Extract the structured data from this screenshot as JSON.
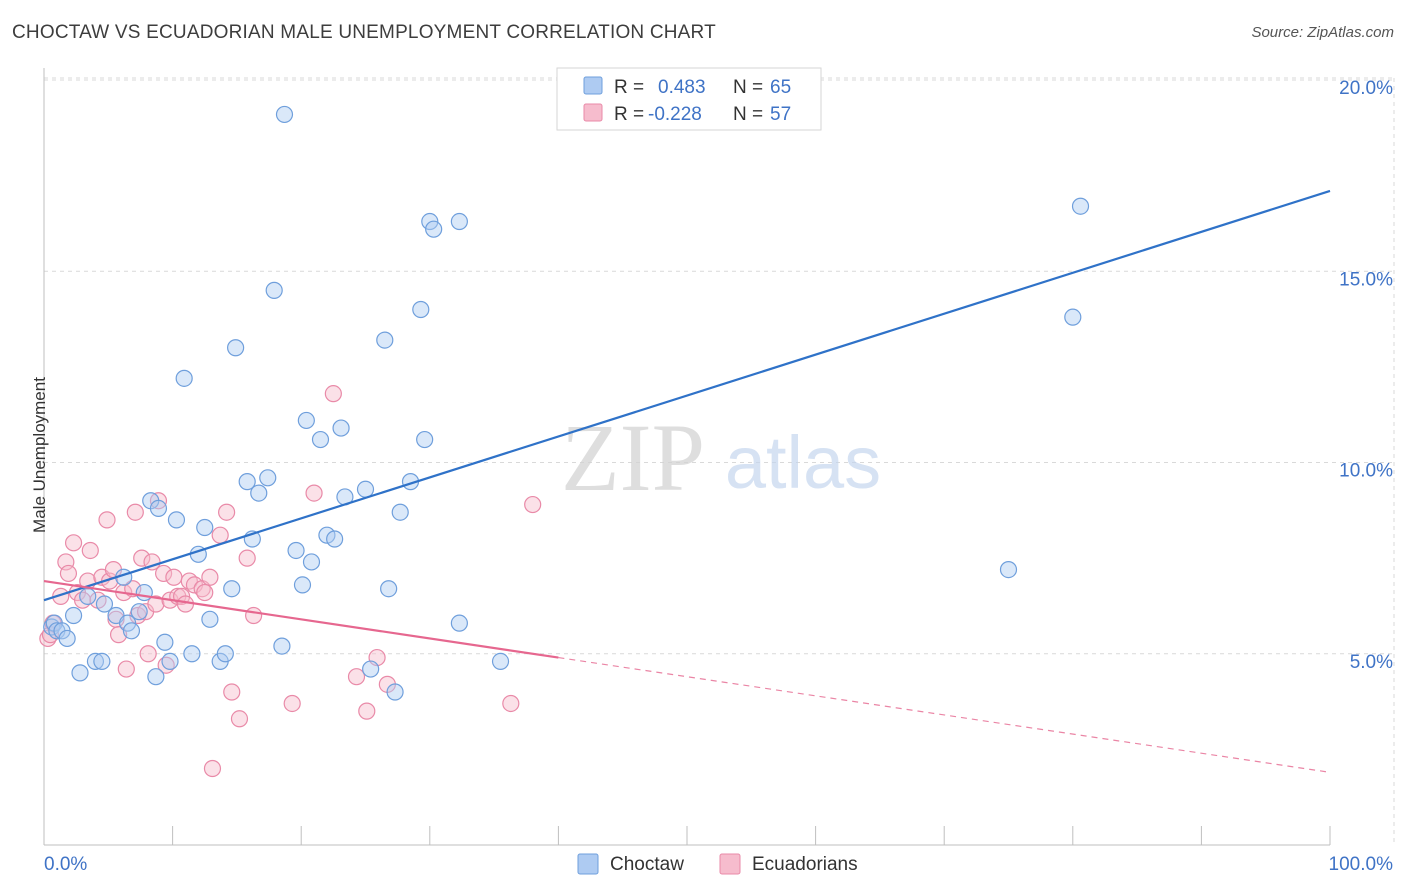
{
  "title": "CHOCTAW VS ECUADORIAN MALE UNEMPLOYMENT CORRELATION CHART",
  "source": "Source: ZipAtlas.com",
  "watermark": {
    "zip": "ZIP",
    "atlas": "atlas"
  },
  "colors": {
    "choctaw_fill": "#aecbf2",
    "choctaw_stroke": "#6f9fdc",
    "choctaw_line": "#2f72c8",
    "ecuadorian_fill": "#f6bccd",
    "ecuadorian_stroke": "#e98aa8",
    "ecuadorian_line": "#e6678f",
    "tick_label": "#3f73c6",
    "grid": "#d9d9d9"
  },
  "legend": {
    "rows": [
      {
        "r_label": "R =",
        "r_value": "0.483",
        "n_label": "N =",
        "n_value": "65"
      },
      {
        "r_label": "R =",
        "r_value": "-0.228",
        "n_label": "N =",
        "n_value": "57"
      }
    ]
  },
  "chart_data": {
    "type": "scatter",
    "title": "CHOCTAW VS ECUADORIAN MALE UNEMPLOYMENT CORRELATION CHART",
    "xlabel": "",
    "ylabel": "Male Unemployment",
    "xlim": [
      0,
      100
    ],
    "ylim": [
      0,
      20
    ],
    "x_tick_labels": [
      "0.0%",
      "100.0%"
    ],
    "y_ticks": [
      5,
      10,
      15,
      20
    ],
    "y_tick_labels": [
      "5.0%",
      "10.0%",
      "15.0%",
      "20.0%"
    ],
    "grid": true,
    "legend_position": "bottom",
    "series": [
      {
        "name": "Choctaw",
        "r": 0.483,
        "n": 65,
        "trend": {
          "x": [
            0,
            100
          ],
          "y": [
            6.4,
            17.1
          ]
        },
        "points": [
          [
            0.6,
            5.7
          ],
          [
            0.8,
            5.8
          ],
          [
            1.0,
            5.6
          ],
          [
            1.4,
            5.6
          ],
          [
            1.8,
            5.4
          ],
          [
            2.3,
            6.0
          ],
          [
            2.8,
            4.5
          ],
          [
            3.4,
            6.5
          ],
          [
            4.0,
            4.8
          ],
          [
            4.5,
            4.8
          ],
          [
            4.7,
            6.3
          ],
          [
            5.6,
            6.0
          ],
          [
            6.2,
            7.0
          ],
          [
            6.5,
            5.8
          ],
          [
            6.8,
            5.6
          ],
          [
            7.4,
            6.1
          ],
          [
            7.8,
            6.6
          ],
          [
            8.3,
            9.0
          ],
          [
            8.7,
            4.4
          ],
          [
            8.9,
            8.8
          ],
          [
            9.4,
            5.3
          ],
          [
            9.8,
            4.8
          ],
          [
            10.3,
            8.5
          ],
          [
            10.9,
            12.2
          ],
          [
            11.5,
            5.0
          ],
          [
            12.0,
            7.6
          ],
          [
            12.5,
            8.3
          ],
          [
            12.9,
            5.9
          ],
          [
            13.7,
            4.8
          ],
          [
            14.1,
            5.0
          ],
          [
            14.6,
            6.7
          ],
          [
            14.9,
            13.0
          ],
          [
            15.8,
            9.5
          ],
          [
            16.2,
            8.0
          ],
          [
            16.7,
            9.2
          ],
          [
            17.4,
            9.6
          ],
          [
            17.9,
            14.5
          ],
          [
            18.5,
            5.2
          ],
          [
            18.7,
            19.1
          ],
          [
            19.6,
            7.7
          ],
          [
            20.1,
            6.8
          ],
          [
            20.4,
            11.1
          ],
          [
            20.8,
            7.4
          ],
          [
            21.5,
            10.6
          ],
          [
            22.0,
            8.1
          ],
          [
            22.6,
            8.0
          ],
          [
            23.1,
            10.9
          ],
          [
            23.4,
            9.1
          ],
          [
            25.0,
            9.3
          ],
          [
            25.4,
            4.6
          ],
          [
            26.5,
            13.2
          ],
          [
            26.8,
            6.7
          ],
          [
            27.3,
            4.0
          ],
          [
            27.7,
            8.7
          ],
          [
            28.5,
            9.5
          ],
          [
            29.3,
            14.0
          ],
          [
            29.6,
            10.6
          ],
          [
            30.0,
            16.3
          ],
          [
            30.3,
            16.1
          ],
          [
            32.3,
            16.3
          ],
          [
            32.3,
            5.8
          ],
          [
            35.5,
            4.8
          ],
          [
            75.0,
            7.2
          ],
          [
            80.0,
            13.8
          ],
          [
            80.6,
            16.7
          ]
        ]
      },
      {
        "name": "Ecuadorians",
        "r": -0.228,
        "n": 57,
        "trend": {
          "x": [
            0,
            40
          ],
          "y": [
            6.9,
            4.9
          ]
        },
        "trend_extension": {
          "x": [
            40,
            100
          ],
          "y": [
            4.9,
            1.9
          ]
        },
        "points": [
          [
            0.3,
            5.4
          ],
          [
            0.5,
            5.5
          ],
          [
            0.7,
            5.8
          ],
          [
            1.3,
            6.5
          ],
          [
            1.7,
            7.4
          ],
          [
            1.9,
            7.1
          ],
          [
            2.3,
            7.9
          ],
          [
            2.6,
            6.6
          ],
          [
            3.0,
            6.4
          ],
          [
            3.4,
            6.9
          ],
          [
            3.6,
            7.7
          ],
          [
            4.2,
            6.4
          ],
          [
            4.5,
            7.0
          ],
          [
            4.9,
            8.5
          ],
          [
            5.1,
            6.9
          ],
          [
            5.4,
            7.2
          ],
          [
            5.6,
            5.9
          ],
          [
            5.8,
            5.5
          ],
          [
            6.2,
            6.6
          ],
          [
            6.4,
            4.6
          ],
          [
            6.9,
            6.7
          ],
          [
            7.1,
            8.7
          ],
          [
            7.3,
            6.0
          ],
          [
            7.6,
            7.5
          ],
          [
            7.9,
            6.1
          ],
          [
            8.1,
            5.0
          ],
          [
            8.4,
            7.4
          ],
          [
            8.7,
            6.3
          ],
          [
            8.9,
            9.0
          ],
          [
            9.3,
            7.1
          ],
          [
            9.5,
            4.7
          ],
          [
            9.8,
            6.4
          ],
          [
            10.1,
            7.0
          ],
          [
            10.4,
            6.5
          ],
          [
            10.7,
            6.5
          ],
          [
            11.0,
            6.3
          ],
          [
            11.3,
            6.9
          ],
          [
            11.7,
            6.8
          ],
          [
            12.3,
            6.7
          ],
          [
            12.5,
            6.6
          ],
          [
            12.9,
            7.0
          ],
          [
            13.1,
            2.0
          ],
          [
            13.7,
            8.1
          ],
          [
            14.2,
            8.7
          ],
          [
            14.6,
            4.0
          ],
          [
            15.2,
            3.3
          ],
          [
            15.8,
            7.5
          ],
          [
            16.3,
            6.0
          ],
          [
            19.3,
            3.7
          ],
          [
            21.0,
            9.2
          ],
          [
            22.5,
            11.8
          ],
          [
            24.3,
            4.4
          ],
          [
            25.1,
            3.5
          ],
          [
            25.9,
            4.9
          ],
          [
            26.7,
            4.2
          ],
          [
            36.3,
            3.7
          ],
          [
            38.0,
            8.9
          ]
        ]
      }
    ]
  },
  "bottom_legend": [
    {
      "label": "Choctaw"
    },
    {
      "label": "Ecuadorians"
    }
  ]
}
